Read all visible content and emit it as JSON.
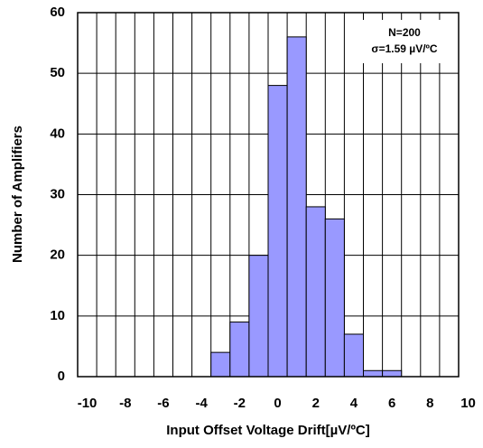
{
  "chart_data": {
    "type": "histogram",
    "x_label": "Input Offset Voltage Drift[µV/ºC]",
    "y_label": "Number of Amplifiers",
    "annotations": [
      "N=200",
      "σ=1.59 µV/ºC"
    ],
    "bins": [
      -3.5,
      -2.5,
      -1.5,
      -0.5,
      0.5,
      1.5,
      2.5,
      3.5,
      4.5,
      5.5,
      6.5
    ],
    "values": [
      4,
      9,
      20,
      48,
      56,
      28,
      26,
      7,
      1,
      1
    ],
    "color": "#9999ff",
    "xlim": [
      -10.5,
      9.5
    ],
    "xticks": [
      -10,
      -8,
      -6,
      -4,
      -2,
      0,
      2,
      4,
      6,
      8,
      10
    ],
    "ylim": [
      0,
      60
    ],
    "yticks": [
      0,
      10,
      20,
      30,
      40,
      50,
      60
    ],
    "grid": true
  }
}
